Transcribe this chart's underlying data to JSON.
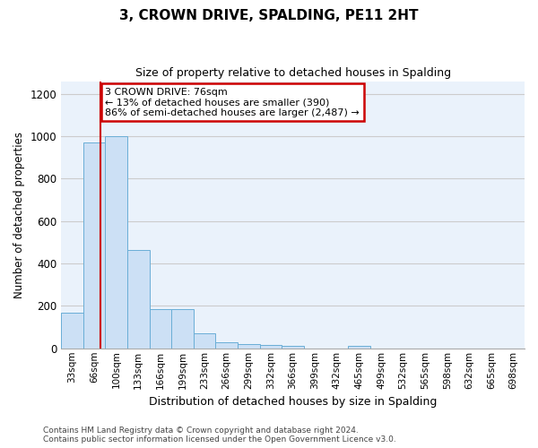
{
  "title": "3, CROWN DRIVE, SPALDING, PE11 2HT",
  "subtitle": "Size of property relative to detached houses in Spalding",
  "xlabel": "Distribution of detached houses by size in Spalding",
  "ylabel": "Number of detached properties",
  "bar_color": "#cce0f5",
  "bar_edge_color": "#6aaed6",
  "grid_color": "#cccccc",
  "bg_color": "#eaf2fb",
  "categories": [
    "33sqm",
    "66sqm",
    "100sqm",
    "133sqm",
    "166sqm",
    "199sqm",
    "233sqm",
    "266sqm",
    "299sqm",
    "332sqm",
    "366sqm",
    "399sqm",
    "432sqm",
    "465sqm",
    "499sqm",
    "532sqm",
    "565sqm",
    "598sqm",
    "632sqm",
    "665sqm",
    "698sqm"
  ],
  "values": [
    170,
    970,
    1000,
    465,
    185,
    185,
    70,
    28,
    22,
    18,
    12,
    0,
    0,
    12,
    0,
    0,
    0,
    0,
    0,
    0,
    0
  ],
  "ylim": [
    0,
    1260
  ],
  "yticks": [
    0,
    200,
    400,
    600,
    800,
    1000,
    1200
  ],
  "property_line_x": 1.3,
  "annotation_text": "3 CROWN DRIVE: 76sqm\n← 13% of detached houses are smaller (390)\n86% of semi-detached houses are larger (2,487) →",
  "annotation_box_color": "#ffffff",
  "annotation_box_edge": "#cc0000",
  "line_color": "#cc0000",
  "footer": "Contains HM Land Registry data © Crown copyright and database right 2024.\nContains public sector information licensed under the Open Government Licence v3.0."
}
